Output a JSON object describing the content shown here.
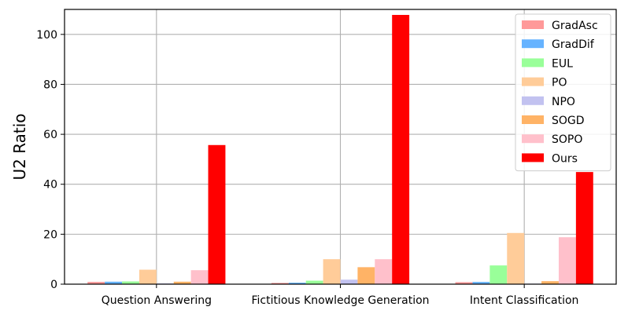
{
  "chart_data": {
    "type": "bar",
    "title": "",
    "xlabel": "",
    "ylabel": "U2 Ratio",
    "ylim": [
      0,
      110
    ],
    "yticks": [
      0,
      20,
      40,
      60,
      80,
      100
    ],
    "grid": true,
    "legend_position": "top-right",
    "categories": [
      "Question Answering",
      "Fictitious Knowledge Generation",
      "Intent Classification"
    ],
    "series": [
      {
        "name": "GradAsc",
        "color": "#ff9999",
        "values": [
          0.9,
          0.5,
          0.8
        ]
      },
      {
        "name": "GradDif",
        "color": "#66b3ff",
        "values": [
          1.0,
          0.6,
          0.9
        ]
      },
      {
        "name": "EUL",
        "color": "#99ff99",
        "values": [
          1.1,
          1.4,
          7.5
        ]
      },
      {
        "name": "PO",
        "color": "#ffcc99",
        "values": [
          5.8,
          10.0,
          20.5
        ]
      },
      {
        "name": "NPO",
        "color": "#c2c2f0",
        "values": [
          0.3,
          1.8,
          0.2
        ]
      },
      {
        "name": "SOGD",
        "color": "#ffb366",
        "values": [
          1.0,
          6.8,
          1.2
        ]
      },
      {
        "name": "SOPO",
        "color": "#ffc0cb",
        "values": [
          5.6,
          10.0,
          18.8
        ]
      },
      {
        "name": "Ours",
        "color": "#ff0000",
        "values": [
          55.7,
          107.8,
          44.9
        ]
      }
    ]
  }
}
